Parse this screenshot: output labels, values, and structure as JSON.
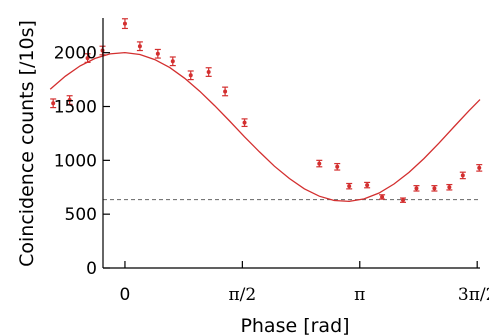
{
  "chart_data": {
    "type": "scatter",
    "title": "",
    "xlabel": "Phase [rad]",
    "ylabel": "Coincidence counts [/10s]",
    "xlim": [
      -0.2,
      4.75
    ],
    "ylim": [
      0,
      2350
    ],
    "x_ticks": [
      {
        "value": 0,
        "label": "0"
      },
      {
        "value": 1.5708,
        "label": "π/2"
      },
      {
        "value": 3.1416,
        "label": "π"
      },
      {
        "value": 4.7124,
        "label": "3π/2"
      }
    ],
    "y_ticks": [
      {
        "value": 0,
        "label": "0"
      },
      {
        "value": 500,
        "label": "500"
      },
      {
        "value": 1000,
        "label": "1000"
      },
      {
        "value": 1500,
        "label": "1500"
      },
      {
        "value": 2000,
        "label": "2000"
      }
    ],
    "series": [
      {
        "type": "scatter",
        "color": "#d32f2f",
        "x": [
          -0.96,
          -0.74,
          -0.5,
          -0.3,
          0.0,
          0.2,
          0.44,
          0.64,
          0.88,
          1.12,
          1.34,
          1.6,
          2.6,
          2.84,
          3.0,
          3.24,
          3.44,
          3.72,
          3.9,
          4.14,
          4.34,
          4.52,
          4.74
        ],
        "y": [
          1530,
          1560,
          1950,
          2020,
          2270,
          2060,
          1990,
          1920,
          1790,
          1820,
          1640,
          1350,
          970,
          940,
          760,
          770,
          660,
          630,
          740,
          740,
          750,
          860,
          930
        ],
        "errors": [
          40,
          40,
          40,
          40,
          45,
          40,
          40,
          40,
          40,
          40,
          40,
          35,
          30,
          30,
          25,
          25,
          20,
          20,
          25,
          25,
          25,
          30,
          30
        ]
      },
      {
        "type": "line",
        "color": "#d32f2f",
        "x": [
          -1.0,
          -0.8,
          -0.6,
          -0.4,
          -0.2,
          0.0,
          0.2,
          0.4,
          0.6,
          0.8,
          1.0,
          1.2,
          1.4,
          1.6,
          1.8,
          2.0,
          2.2,
          2.4,
          2.6,
          2.8,
          3.0,
          3.2,
          3.4,
          3.6,
          3.8,
          4.0,
          4.2,
          4.4,
          4.6,
          4.75
        ],
        "y": [
          1661,
          1781,
          1877,
          1947,
          1989,
          2001,
          1983,
          1936,
          1861,
          1762,
          1642,
          1508,
          1365,
          1219,
          1078,
          946,
          831,
          736,
          667,
          627,
          619,
          642,
          697,
          780,
          888,
          1016,
          1159,
          1310,
          1459,
          1564
        ]
      },
      {
        "type": "reference-line",
        "style": "dashed",
        "color": "#666666",
        "y": 635
      }
    ]
  }
}
